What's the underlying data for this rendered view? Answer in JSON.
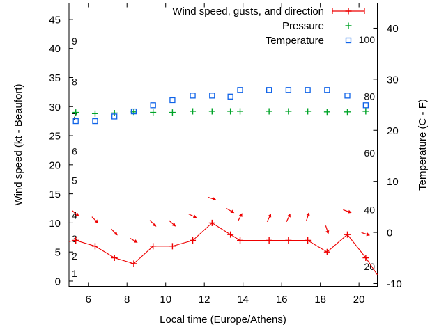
{
  "page": {
    "background": "#ffffff"
  },
  "chart_data": {
    "type": "line",
    "title": "",
    "xlabel": "Local time (Europe/Athens)",
    "ylabel_left": "Wind speed (kt - Beaufort)",
    "ylabel_right": "Temperature (C - F)",
    "grid": false,
    "legend_position": "inside-top-right",
    "colors": {
      "wind": "#ee0000",
      "pressure": "#00a428",
      "temperature": "#0f63e8",
      "axis": "#000000"
    },
    "legend": [
      {
        "label": "Wind speed, gusts, and direction",
        "series": "wind",
        "sample": "errorbar",
        "color": "#ee0000"
      },
      {
        "label": "Pressure",
        "series": "pressure",
        "sample": "plus",
        "color": "#00a428"
      },
      {
        "label": "Temperature",
        "series": "temperature",
        "sample": "square",
        "color": "#0f63e8"
      }
    ],
    "x": {
      "min": 5.0,
      "max": 20.95,
      "ticks": [
        6,
        8,
        10,
        12,
        14,
        16,
        18,
        20
      ]
    },
    "y_left": {
      "min": -0.9,
      "max": 47.8,
      "ticks": [
        0,
        5,
        10,
        15,
        20,
        25,
        30,
        35,
        40,
        45
      ]
    },
    "y_right": {
      "min": -10.55,
      "max": 44.9,
      "ticks": [
        -10,
        0,
        10,
        20,
        30,
        40
      ]
    },
    "beaufort_labels": [
      {
        "label": "1",
        "kt": 1
      },
      {
        "label": "2",
        "kt": 4
      },
      {
        "label": "3",
        "kt": 7
      },
      {
        "label": "4",
        "kt": 11
      },
      {
        "label": "5",
        "kt": 17
      },
      {
        "label": "6",
        "kt": 22
      },
      {
        "label": "7",
        "kt": 28
      },
      {
        "label": "8",
        "kt": 34
      },
      {
        "label": "9",
        "kt": 41
      }
    ],
    "fahrenheit_labels": [
      {
        "label": "20",
        "f": 20
      },
      {
        "label": "40",
        "f": 40
      },
      {
        "label": "60",
        "f": 60
      },
      {
        "label": "80",
        "f": 80
      },
      {
        "label": "100",
        "f": 100
      }
    ],
    "times": [
      5.35,
      6.35,
      7.35,
      8.35,
      9.35,
      10.35,
      11.4,
      12.4,
      13.35,
      13.85,
      15.35,
      16.35,
      17.35,
      18.35,
      19.4,
      20.35
    ],
    "wind_speed_kt": [
      7,
      6,
      4,
      3,
      6,
      6,
      7,
      10,
      8,
      7,
      7,
      7,
      7,
      5,
      8,
      4
    ],
    "wind_edge_start": {
      "t": 5.0,
      "kt": 6.8
    },
    "wind_edge_end": {
      "t": 20.95,
      "kt": 1.1
    },
    "gusts": [
      {
        "t": 5.35,
        "kt": 11.6,
        "angle_deg": 40
      },
      {
        "t": 6.35,
        "kt": 10.5,
        "angle_deg": 45
      },
      {
        "t": 7.35,
        "kt": 8.4,
        "angle_deg": 45
      },
      {
        "t": 8.35,
        "kt": 7.0,
        "angle_deg": 30
      },
      {
        "t": 9.35,
        "kt": 9.9,
        "angle_deg": 44
      },
      {
        "t": 10.35,
        "kt": 9.9,
        "angle_deg": 42
      },
      {
        "t": 11.4,
        "kt": 11.2,
        "angle_deg": 25
      },
      {
        "t": 12.4,
        "kt": 14.2,
        "angle_deg": 18
      },
      {
        "t": 13.35,
        "kt": 12.1,
        "angle_deg": 30
      },
      {
        "t": 13.85,
        "kt": 11.0,
        "angle_deg": -62
      },
      {
        "t": 15.35,
        "kt": 10.9,
        "angle_deg": -65
      },
      {
        "t": 16.35,
        "kt": 10.9,
        "angle_deg": -65
      },
      {
        "t": 17.35,
        "kt": 11.1,
        "angle_deg": -72
      },
      {
        "t": 18.35,
        "kt": 8.8,
        "angle_deg": 72
      },
      {
        "t": 19.4,
        "kt": 12.0,
        "angle_deg": 20
      },
      {
        "t": 20.35,
        "kt": 8.1,
        "angle_deg": 18
      }
    ],
    "pressure": [
      29.0,
      28.8,
      28.9,
      29.1,
      29.0,
      29.0,
      29.2,
      29.2,
      29.2,
      29.2,
      29.2,
      29.2,
      29.2,
      29.1,
      29.1,
      29.2
    ],
    "temperature_c": [
      21.8,
      21.8,
      22.7,
      23.7,
      24.9,
      25.9,
      26.8,
      26.8,
      26.6,
      27.9,
      27.9,
      27.9,
      27.9,
      27.9,
      26.8,
      24.9
    ]
  }
}
